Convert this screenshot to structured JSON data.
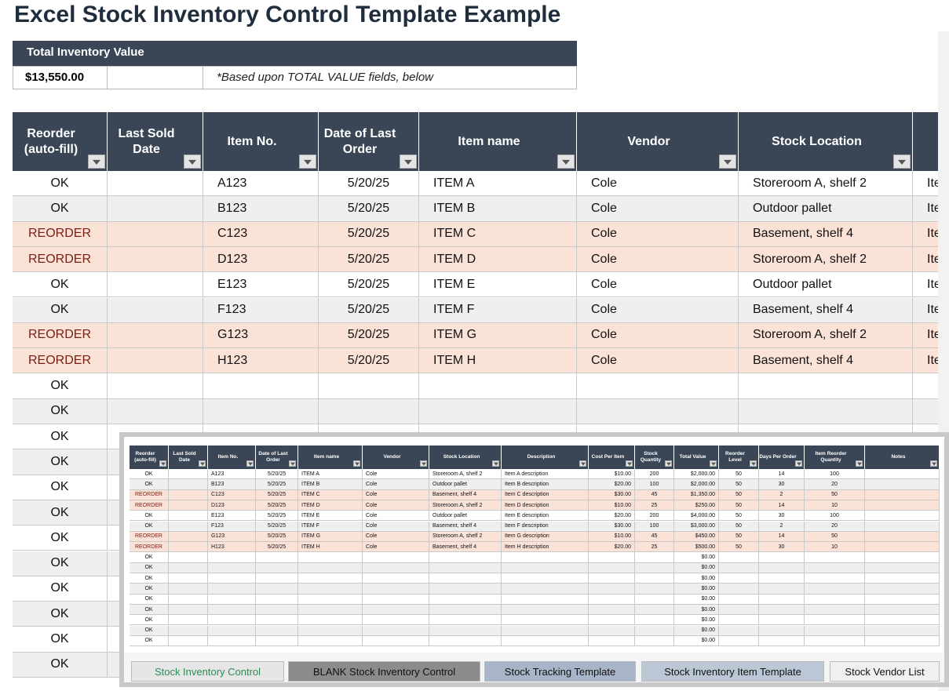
{
  "title": "Excel Stock Inventory Control Template Example",
  "summary": {
    "label": "Total Inventory Value",
    "value": "$13,550.00",
    "note": "*Based upon TOTAL VALUE fields, below"
  },
  "table": {
    "headers": [
      "Reorder (auto-fill)",
      "Last Sold Date",
      "Item No.",
      "Date of Last Order",
      "Item name",
      "Vendor",
      "Stock Location",
      "Description",
      "Cost Per Item",
      "Stock Quantity",
      "Total Value",
      "Reorder Level",
      "Days Per Order",
      "Item Reorder Quantity",
      "Notes"
    ],
    "rows": [
      {
        "reorder": "OK",
        "item_no": "A123",
        "date": "5/20/25",
        "name": "ITEM A",
        "vendor": "Cole",
        "location": "Storeroom A, shelf 2",
        "description": "Item A description",
        "cost": "$10.00",
        "qty": 200,
        "total": "$2,000.00",
        "level": 50,
        "days": 14,
        "reorder_qty": 100
      },
      {
        "reorder": "OK",
        "item_no": "B123",
        "date": "5/20/25",
        "name": "ITEM B",
        "vendor": "Cole",
        "location": "Outdoor pallet",
        "description": "Item B description",
        "cost": "$20.00",
        "qty": 100,
        "total": "$2,000.00",
        "level": 50,
        "days": 30,
        "reorder_qty": 20
      },
      {
        "reorder": "REORDER",
        "item_no": "C123",
        "date": "5/20/25",
        "name": "ITEM C",
        "vendor": "Cole",
        "location": "Basement, shelf 4",
        "description": "Item C description",
        "cost": "$30.00",
        "qty": 45,
        "total": "$1,350.00",
        "level": 50,
        "days": 2,
        "reorder_qty": 50
      },
      {
        "reorder": "REORDER",
        "item_no": "D123",
        "date": "5/20/25",
        "name": "ITEM D",
        "vendor": "Cole",
        "location": "Storeroom A, shelf 2",
        "description": "Item D description",
        "cost": "$10.00",
        "qty": 25,
        "total": "$250.00",
        "level": 50,
        "days": 14,
        "reorder_qty": 10
      },
      {
        "reorder": "OK",
        "item_no": "E123",
        "date": "5/20/25",
        "name": "ITEM E",
        "vendor": "Cole",
        "location": "Outdoor pallet",
        "description": "Item E description",
        "cost": "$20.00",
        "qty": 200,
        "total": "$4,000.00",
        "level": 50,
        "days": 30,
        "reorder_qty": 100
      },
      {
        "reorder": "OK",
        "item_no": "F123",
        "date": "5/20/25",
        "name": "ITEM F",
        "vendor": "Cole",
        "location": "Basement, shelf 4",
        "description": "Item F description",
        "cost": "$30.00",
        "qty": 100,
        "total": "$3,000.00",
        "level": 50,
        "days": 2,
        "reorder_qty": 20
      },
      {
        "reorder": "REORDER",
        "item_no": "G123",
        "date": "5/20/25",
        "name": "ITEM G",
        "vendor": "Cole",
        "location": "Storeroom A, shelf 2",
        "description": "Item G description",
        "cost": "$10.00",
        "qty": 45,
        "total": "$450.00",
        "level": 50,
        "days": 14,
        "reorder_qty": 50
      },
      {
        "reorder": "REORDER",
        "item_no": "H123",
        "date": "5/20/25",
        "name": "ITEM H",
        "vendor": "Cole",
        "location": "Basement, shelf 4",
        "description": "Item H description",
        "cost": "$20.00",
        "qty": 25,
        "total": "$500.00",
        "level": 50,
        "days": 30,
        "reorder_qty": 10
      }
    ],
    "blank_row": {
      "reorder": "OK",
      "total": "$0.00"
    }
  },
  "tabs": [
    "Stock Inventory Control",
    "BLANK Stock Inventory Control",
    "Stock Tracking Template",
    "Stock Inventory Item Template",
    "Stock Vendor List"
  ]
}
